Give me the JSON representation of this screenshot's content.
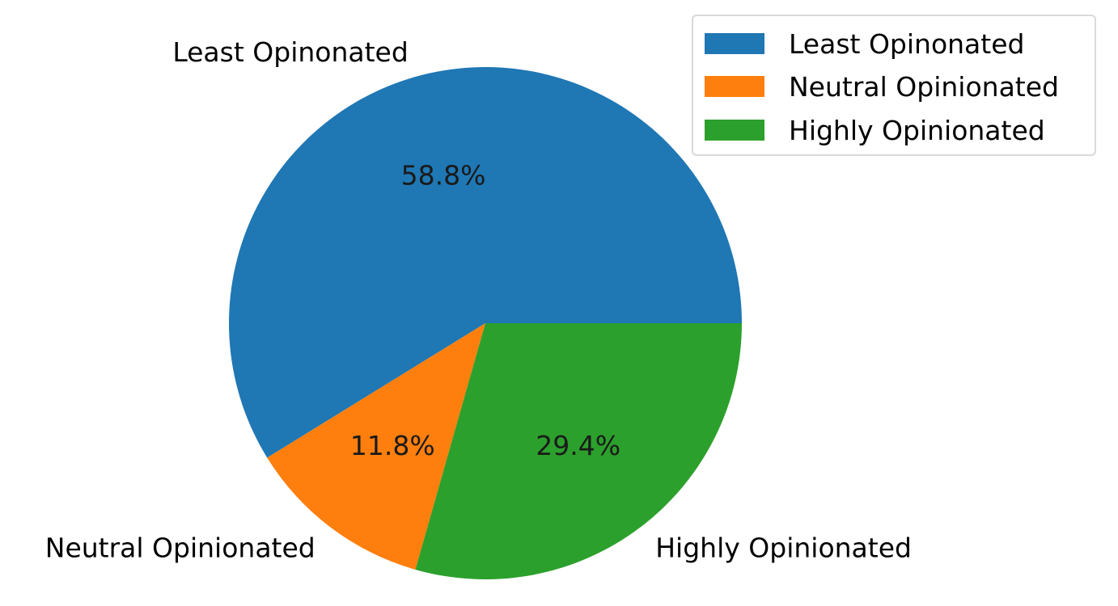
{
  "chart_data": {
    "type": "pie",
    "labels": [
      "Least Opinonated",
      "Neutral Opinionated",
      "Highly Opinionated"
    ],
    "values": [
      58.8,
      11.8,
      29.4
    ],
    "value_labels": [
      "58.8%",
      "11.8%",
      "29.4%"
    ],
    "colors": [
      "#1f77b4",
      "#ff7f0e",
      "#2ca02c"
    ],
    "start_angle_deg": 0,
    "direction": "counterclockwise",
    "legend": {
      "placement": "top-right",
      "entries": [
        "Least Opinonated",
        "Neutral Opinionated",
        "Highly Opinionated"
      ]
    }
  }
}
